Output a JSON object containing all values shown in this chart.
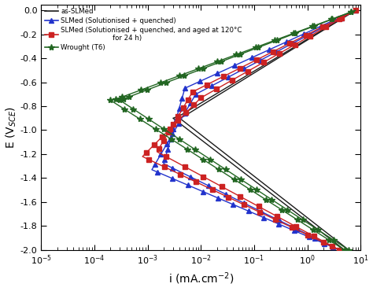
{
  "xlabel": "i (mA.cm$^{-2}$)",
  "ylabel": "E (V$_{SCE}$)",
  "colors": {
    "as_slmed": "#1a1a1a",
    "slmed_sq": "#2233cc",
    "slmed_sq_aged": "#cc2222",
    "wrought": "#226622"
  },
  "background": "#ffffff",
  "legend_labels": {
    "as_slmed": "as-SLMed",
    "slmed_sq": "SLMed (Solutionised + quenched)",
    "slmed_sq_aged": "SLMed (Solutionised + quenched, and aged at 120°C\n                        for 24 h)",
    "wrought": "Wrought (T6)"
  }
}
